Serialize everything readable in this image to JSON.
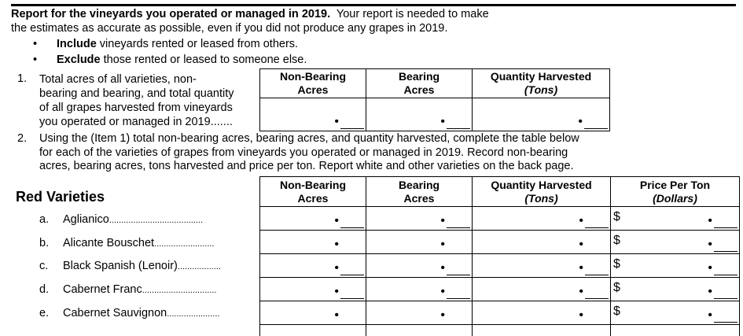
{
  "intro": {
    "bold": "Report for the vineyards you operated or managed in 2019.",
    "rest1": "  Your report is needed to make",
    "line2": "the estimates as accurate as possible, even if you did not produce any grapes in 2019.",
    "bullets": [
      {
        "bold": "Include",
        "text": " vineyards rented or leased from others."
      },
      {
        "bold": "Exclude",
        "text": " those rented or leased to someone else."
      }
    ]
  },
  "item1": {
    "number": "1.",
    "lines": [
      "Total acres of all varieties, non-",
      "bearing and bearing, and total quantity",
      "of all grapes harvested from vineyards",
      "you operated or managed in 2019"
    ],
    "leader": ".......",
    "columns": [
      {
        "title": "Non-Bearing",
        "sub": "Acres",
        "sub_italic": false
      },
      {
        "title": "Bearing",
        "sub": "Acres",
        "sub_italic": false
      },
      {
        "title": "Quantity Harvested",
        "sub": "(Tons)",
        "sub_italic": true
      }
    ]
  },
  "item2": {
    "number": "2.",
    "lines": [
      "Using the (Item 1) total non-bearing acres, bearing acres, and quantity harvested, complete the table below",
      "for each of the varieties of grapes from vineyards you operated or managed in 2019. Record non-bearing",
      "acres, bearing acres, tons harvested and price per ton.  Report white and other varieties on the back page."
    ]
  },
  "red": {
    "heading": "Red Varieties",
    "columns": [
      {
        "title": "Non-Bearing",
        "sub": "Acres"
      },
      {
        "title": "Bearing",
        "sub": "Acres"
      },
      {
        "title": "Quantity Harvested",
        "sub": "(Tons)"
      },
      {
        "title": "Price Per Ton",
        "sub": "(Dollars)"
      }
    ],
    "currency": "$",
    "decimal": "•",
    "rows": [
      {
        "letter": "a.",
        "name": "Aglianico",
        "leader": "......................................."
      },
      {
        "letter": "b.",
        "name": "Alicante Bouschet",
        "leader": "........................."
      },
      {
        "letter": "c.",
        "name": "Black Spanish (Lenoir)",
        "leader": ".................."
      },
      {
        "letter": "d.",
        "name": "Cabernet Franc",
        "leader": "..............................."
      },
      {
        "letter": "e.",
        "name": "Cabernet Sauvignon",
        "leader": "......................"
      }
    ]
  }
}
